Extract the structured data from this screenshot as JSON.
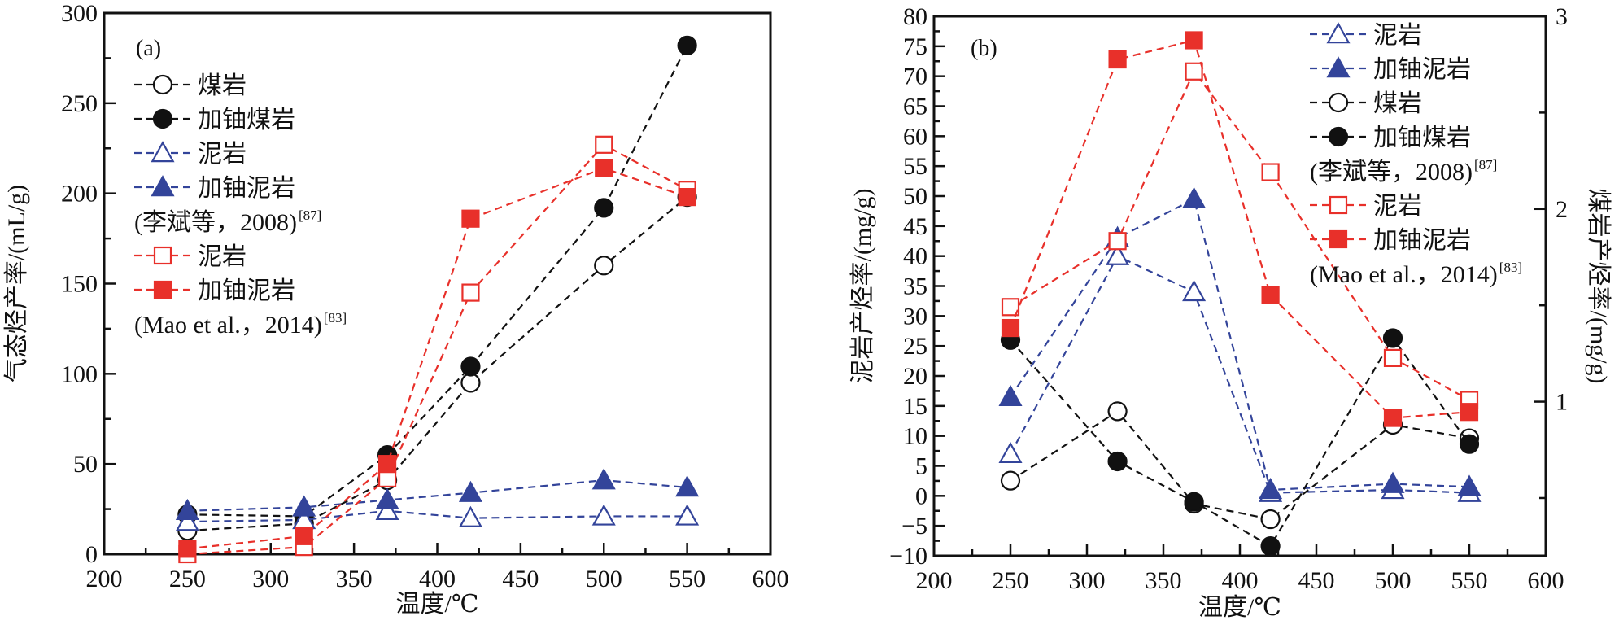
{
  "chart_data": [
    {
      "id": "a",
      "type": "line",
      "panel_label": "(a)",
      "xlabel": "温度/℃",
      "ylabel": "气态烃产率/(mL/g)",
      "xlim": [
        200,
        600
      ],
      "ylim": [
        0,
        300
      ],
      "xticks": [
        200,
        250,
        300,
        350,
        400,
        450,
        500,
        550,
        600
      ],
      "yticks": [
        0,
        50,
        100,
        150,
        200,
        250,
        300
      ],
      "grid": false,
      "legend_position": "top-left",
      "legend": [
        {
          "series": "coal",
          "label": "煤岩"
        },
        {
          "series": "coal_u",
          "label": "加铀煤岩"
        },
        {
          "series": "mud_li",
          "label": "泥岩"
        },
        {
          "series": "mud_u_li",
          "label": "加铀泥岩"
        },
        {
          "citation": "(李斌等，2008)",
          "ref": "[87]"
        },
        {
          "series": "mud_mao",
          "label": "泥岩"
        },
        {
          "series": "mud_u_mao",
          "label": "加铀泥岩"
        },
        {
          "citation": "(Mao et al.，2014)",
          "ref": "[83]"
        }
      ],
      "series": [
        {
          "key": "coal",
          "name": "煤岩",
          "source": "李斌等, 2008",
          "marker": "circle-open",
          "color": "#111111",
          "x": [
            250,
            320,
            370,
            420,
            500,
            550
          ],
          "y": [
            13,
            17,
            41,
            95,
            160,
            198
          ]
        },
        {
          "key": "coal_u",
          "name": "加铀煤岩",
          "source": "李斌等, 2008",
          "marker": "circle-filled",
          "color": "#111111",
          "x": [
            250,
            320,
            370,
            420,
            500,
            550
          ],
          "y": [
            22,
            21,
            55,
            104,
            192,
            282
          ]
        },
        {
          "key": "mud_li",
          "name": "泥岩",
          "source": "李斌等, 2008",
          "marker": "triangle-open",
          "color": "#33449a",
          "x": [
            250,
            320,
            370,
            420,
            500,
            550
          ],
          "y": [
            18,
            19,
            24,
            20,
            21,
            21
          ]
        },
        {
          "key": "mud_u_li",
          "name": "加铀泥岩",
          "source": "李斌等, 2008",
          "marker": "triangle-filled",
          "color": "#33449a",
          "x": [
            250,
            320,
            370,
            420,
            500,
            550
          ],
          "y": [
            24,
            26,
            30,
            34,
            41,
            37
          ]
        },
        {
          "key": "mud_mao",
          "name": "泥岩",
          "source": "Mao et al., 2014",
          "marker": "square-open",
          "color": "#e8302a",
          "x": [
            250,
            320,
            370,
            420,
            500,
            550
          ],
          "y": [
            0,
            4,
            42,
            145,
            227,
            202
          ]
        },
        {
          "key": "mud_u_mao",
          "name": "加铀泥岩",
          "source": "Mao et al., 2014",
          "marker": "square-filled",
          "color": "#e8302a",
          "x": [
            250,
            320,
            370,
            420,
            500,
            550
          ],
          "y": [
            3,
            10,
            50,
            186,
            214,
            198
          ]
        }
      ]
    },
    {
      "id": "b",
      "type": "line",
      "panel_label": "(b)",
      "xlabel": "温度/℃",
      "ylabel": "泥岩产烃率/(mg/g)",
      "ylabel_right": "煤岩产烃率/(mg/g)",
      "xlim": [
        200,
        600
      ],
      "ylim": [
        -10,
        80
      ],
      "ylim_right": [
        0.2,
        3
      ],
      "xticks": [
        200,
        250,
        300,
        350,
        400,
        450,
        500,
        550,
        600
      ],
      "yticks": [
        -10,
        -5,
        0,
        5,
        10,
        15,
        20,
        25,
        30,
        35,
        40,
        45,
        50,
        55,
        60,
        65,
        70,
        75,
        80
      ],
      "yticks_right": [
        1,
        2,
        3
      ],
      "grid": false,
      "legend_position": "top-right",
      "legend": [
        {
          "series": "mud_li",
          "label": "泥岩"
        },
        {
          "series": "mud_u_li",
          "label": "加铀泥岩"
        },
        {
          "series": "coal",
          "label": "煤岩"
        },
        {
          "series": "coal_u",
          "label": "加铀煤岩"
        },
        {
          "citation": "(李斌等，2008)",
          "ref": "[87]"
        },
        {
          "series": "mud_mao",
          "label": "泥岩"
        },
        {
          "series": "mud_u_mao",
          "label": "加铀泥岩"
        },
        {
          "citation": "(Mao et al.，2014)",
          "ref": "[83]"
        }
      ],
      "series": [
        {
          "key": "mud_li",
          "name": "泥岩",
          "source": "李斌等, 2008",
          "axis": "left",
          "marker": "triangle-open",
          "color": "#33449a",
          "x": [
            250,
            320,
            370,
            420,
            500,
            550
          ],
          "y": [
            7,
            40,
            34,
            0.5,
            1,
            0.5
          ]
        },
        {
          "key": "mud_u_li",
          "name": "加铀泥岩",
          "source": "李斌等, 2008",
          "axis": "left",
          "marker": "triangle-filled",
          "color": "#33449a",
          "x": [
            250,
            320,
            370,
            420,
            500,
            550
          ],
          "y": [
            16.5,
            43,
            49.5,
            1,
            2,
            1.5
          ]
        },
        {
          "key": "coal",
          "name": "煤岩",
          "source": "李斌等, 2008",
          "axis": "right",
          "marker": "circle-open",
          "color": "#111111",
          "x": [
            250,
            320,
            370,
            420,
            500,
            550
          ],
          "y": [
            0.59,
            0.95,
            0.47,
            0.39,
            0.88,
            0.81
          ]
        },
        {
          "key": "coal_u",
          "name": "加铀煤岩",
          "source": "李斌等, 2008",
          "axis": "right",
          "marker": "circle-filled",
          "color": "#111111",
          "x": [
            250,
            320,
            370,
            420,
            500,
            550
          ],
          "y": [
            1.32,
            0.69,
            0.48,
            0.25,
            1.33,
            0.78
          ]
        },
        {
          "key": "mud_mao",
          "name": "泥岩",
          "source": "Mao et al., 2014",
          "axis": "left",
          "marker": "square-open",
          "color": "#e8302a",
          "x": [
            250,
            320,
            370,
            420,
            500,
            550
          ],
          "y": [
            31.5,
            42.5,
            70.8,
            54,
            23,
            16
          ]
        },
        {
          "key": "mud_u_mao",
          "name": "加铀泥岩",
          "source": "Mao et al., 2014",
          "axis": "left",
          "marker": "square-filled",
          "color": "#e8302a",
          "x": [
            250,
            320,
            370,
            420,
            500,
            550
          ],
          "y": [
            28,
            72.8,
            76,
            33.5,
            13,
            14
          ]
        }
      ]
    }
  ]
}
